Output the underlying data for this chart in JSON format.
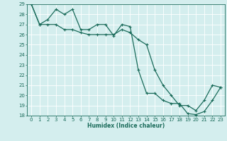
{
  "xlabel": "Humidex (Indice chaleur)",
  "x": [
    0,
    1,
    2,
    3,
    4,
    5,
    6,
    7,
    8,
    9,
    10,
    11,
    12,
    13,
    14,
    15,
    16,
    17,
    18,
    19,
    20,
    21,
    22,
    23
  ],
  "line1": [
    29,
    27,
    27.5,
    28.5,
    28,
    28.5,
    26.5,
    26.5,
    27,
    27,
    25.9,
    27,
    26.8,
    22.5,
    20.2,
    20.2,
    19.5,
    19.2,
    19.2,
    18.2,
    18.1,
    18.4,
    19.5,
    20.8
  ],
  "line2": [
    29,
    27,
    27,
    27,
    26.5,
    26.5,
    26.2,
    26,
    26,
    26,
    26,
    26.5,
    26.2,
    25.5,
    25,
    22.5,
    21,
    20,
    19,
    19,
    18.5,
    19.5,
    21,
    20.8
  ],
  "line_color": "#1a6b5a",
  "bg_color": "#d4eeee",
  "grid_color": "#ffffff",
  "ylim": [
    18,
    29
  ],
  "xlim": [
    -0.5,
    23.5
  ],
  "yticks": [
    18,
    19,
    20,
    21,
    22,
    23,
    24,
    25,
    26,
    27,
    28,
    29
  ],
  "xticks": [
    0,
    1,
    2,
    3,
    4,
    5,
    6,
    7,
    8,
    9,
    10,
    11,
    12,
    13,
    14,
    15,
    16,
    17,
    18,
    19,
    20,
    21,
    22,
    23
  ],
  "marker": "+",
  "linewidth": 0.9,
  "markersize": 3.5,
  "tick_fontsize": 5.0,
  "xlabel_fontsize": 5.5
}
